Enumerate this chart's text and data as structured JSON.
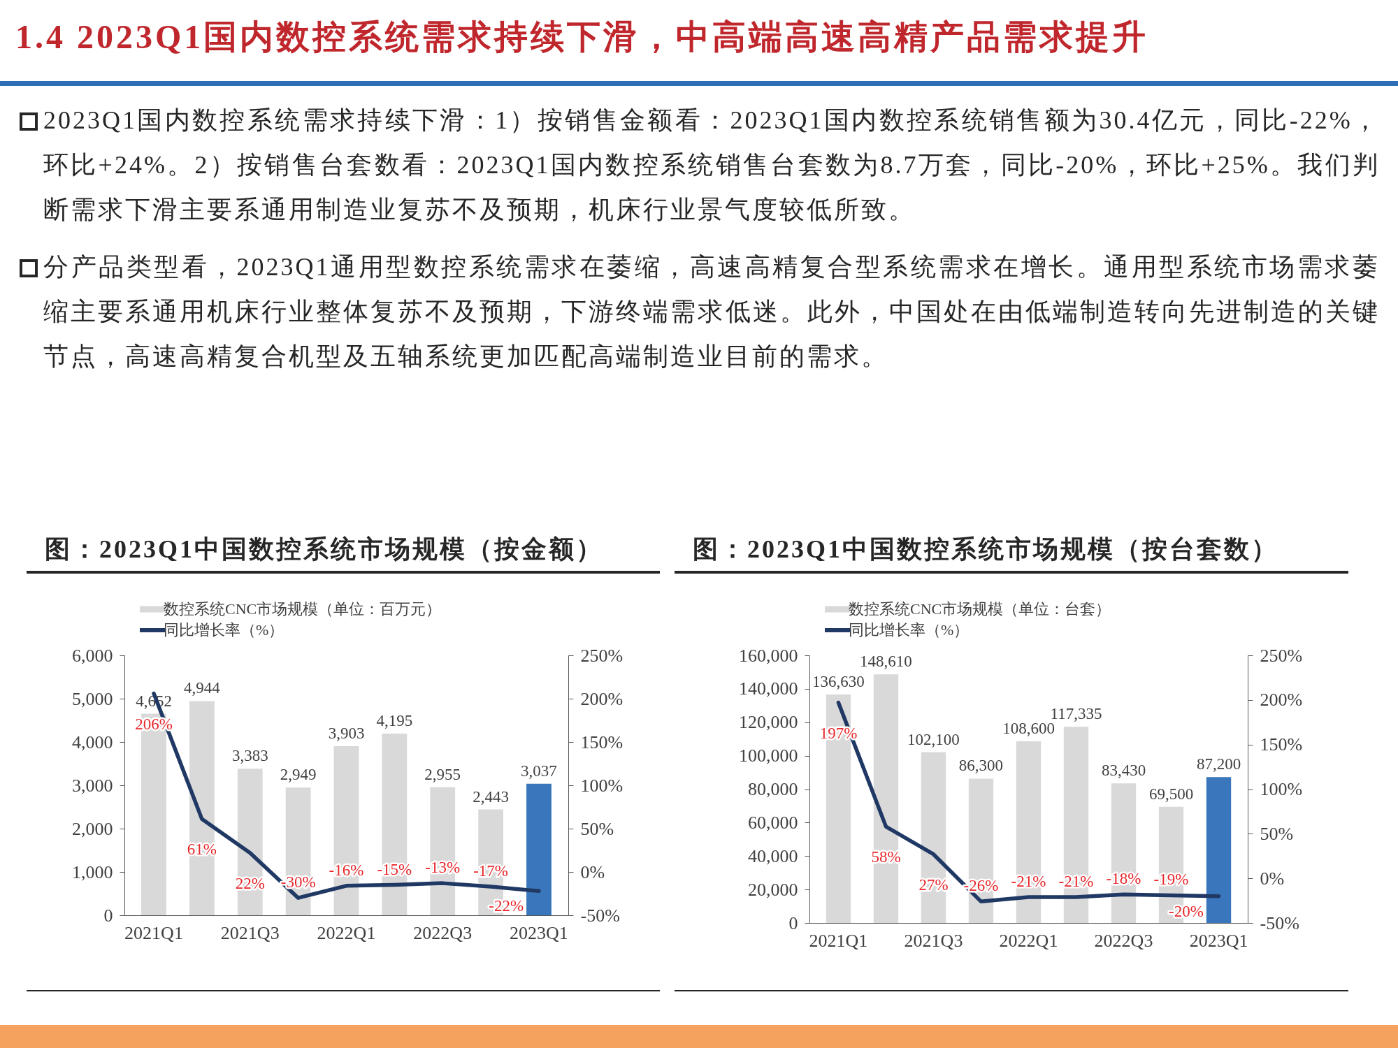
{
  "chart_data": [
    {
      "type": "other",
      "title": "1.4 2023Q1国内数控系统需求持续下滑，中高端高速高精产品需求提升",
      "annotations": [
        "2023Q1国内数控系统需求持续下滑：1）按销售金额看：2023Q1国内数控系统销售额为30.4亿元，同比-22%，环比+24%。2）按销售台套数看：2023Q1国内数控系统销售台套数为8.7万套，同比-20%，环比+25%。我们判断需求下滑主要系通用制造业复苏不及预期，机床行业景气度较低所致。",
        "分产品类型看，2023Q1通用型数控系统需求在萎缩，高速高精复合型系统需求在增长。通用型系统市场需求萎缩主要系通用机床行业整体复苏不及预期，下游终端需求低迷。此外，中国处在由低端制造转向先进制造的关键节点，高速高精复合机型及五轴系统更加匹配高端制造业目前的需求。"
      ]
    },
    {
      "type": "bar",
      "title": "图：2023Q1中国数控系统市场规模（按金额）",
      "categories": [
        "2021Q1",
        null,
        "2021Q3",
        null,
        "2022Q1",
        null,
        "2022Q3",
        null,
        "2023Q1"
      ],
      "series": [
        {
          "name": "数控系统CNC市场规模（单位：百万元）",
          "type": "bar",
          "color": "#d9d9d9",
          "colors": [
            "#d9d9d9",
            "#d9d9d9",
            "#d9d9d9",
            "#d9d9d9",
            "#d9d9d9",
            "#d9d9d9",
            "#d9d9d9",
            "#d9d9d9",
            "#3a76bb"
          ],
          "values": [
            4652,
            4944,
            3383,
            2949,
            3903,
            4195,
            2955,
            2443,
            3037
          ],
          "value_labels": [
            "4,652",
            "4,944",
            "3,383",
            "2,949",
            "3,903",
            "4,195",
            "2,955",
            "2,443",
            "3,037"
          ]
        },
        {
          "name": "同比增长率（%）",
          "type": "line",
          "axis": "y2",
          "color": "#203864",
          "values": [
            206,
            61,
            22,
            -30,
            -16,
            -15,
            -13,
            -17,
            -22
          ],
          "value_labels": [
            "206%",
            "61%",
            "22%",
            "-30%",
            "-16%",
            "-15%",
            "-13%",
            "-17%",
            "-22%"
          ]
        }
      ],
      "ylim": [
        0,
        6000
      ],
      "yticks": [
        0,
        {
          "value": 1000,
          "label": "1,000"
        },
        {
          "value": 2000,
          "label": "2,000"
        },
        {
          "value": 3000,
          "label": "3,000"
        },
        {
          "value": 4000,
          "label": "4,000"
        },
        {
          "value": 5000,
          "label": "5,000"
        },
        {
          "value": 6000,
          "label": "6,000"
        }
      ],
      "y2lim": [
        -50,
        250
      ],
      "y2ticks": [
        {
          "value": -50,
          "label": "-50%"
        },
        {
          "value": 0,
          "label": "0%"
        },
        {
          "value": 50,
          "label": "50%"
        },
        {
          "value": 100,
          "label": "100%"
        },
        {
          "value": 150,
          "label": "150%"
        },
        {
          "value": 200,
          "label": "200%"
        },
        {
          "value": 250,
          "label": "250%"
        }
      ],
      "legend": "top"
    },
    {
      "type": "bar",
      "title": "图：2023Q1中国数控系统市场规模（按台套数）",
      "categories": [
        "2021Q1",
        null,
        "2021Q3",
        null,
        "2022Q1",
        null,
        "2022Q3",
        null,
        "2023Q1"
      ],
      "series": [
        {
          "name": "数控系统CNC市场规模（单位：台套）",
          "type": "bar",
          "color": "#d9d9d9",
          "colors": [
            "#d9d9d9",
            "#d9d9d9",
            "#d9d9d9",
            "#d9d9d9",
            "#d9d9d9",
            "#d9d9d9",
            "#d9d9d9",
            "#d9d9d9",
            "#3a76bb"
          ],
          "values": [
            136630,
            148610,
            102100,
            86300,
            108600,
            117335,
            83430,
            69500,
            87200
          ],
          "value_labels": [
            "136,630",
            "148,610",
            "102,100",
            "86,300",
            "108,600",
            "117,335",
            "83,430",
            "69,500",
            "87,200"
          ]
        },
        {
          "name": "同比增长率（%）",
          "type": "line",
          "axis": "y2",
          "color": "#203864",
          "values": [
            197,
            58,
            27,
            -26,
            -21,
            -21,
            -18,
            -19,
            -20
          ],
          "value_labels": [
            "197%",
            "58%",
            "27%",
            "-26%",
            "-21%",
            "-21%",
            "-18%",
            "-19%",
            "-20%"
          ]
        }
      ],
      "ylim": [
        0,
        160000
      ],
      "yticks": [
        0,
        {
          "value": 20000,
          "label": "20,000"
        },
        {
          "value": 40000,
          "label": "40,000"
        },
        {
          "value": 60000,
          "label": "60,000"
        },
        {
          "value": 80000,
          "label": "80,000"
        },
        {
          "value": 100000,
          "label": "100,000"
        },
        {
          "value": 120000,
          "label": "120,000"
        },
        {
          "value": 140000,
          "label": "140,000"
        },
        {
          "value": 160000,
          "label": "160,000"
        }
      ],
      "y2lim": [
        -50,
        250
      ],
      "y2ticks": [
        {
          "value": -50,
          "label": "-50%"
        },
        {
          "value": 0,
          "label": "0%"
        },
        {
          "value": 50,
          "label": "50%"
        },
        {
          "value": 100,
          "label": "100%"
        },
        {
          "value": 150,
          "label": "150%"
        },
        {
          "value": 200,
          "label": "200%"
        },
        {
          "value": 250,
          "label": "250%"
        }
      ],
      "legend": "top"
    }
  ]
}
